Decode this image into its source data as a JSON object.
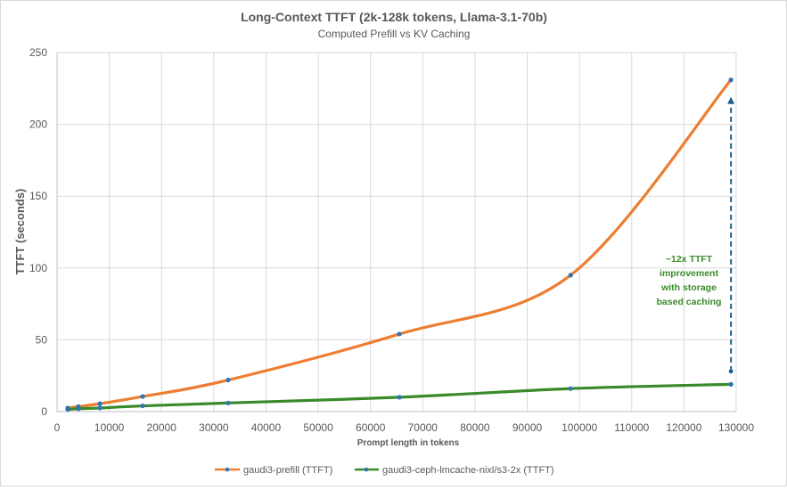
{
  "chart_data": {
    "type": "line",
    "title": "Long-Context TTFT (2k-128k tokens, Llama-3.1-70b)",
    "subtitle": "Computed Prefill vs KV Caching",
    "xlabel": "Prompt length in tokens",
    "ylabel": "TTFT (seconds)",
    "xlim": [
      0,
      130000
    ],
    "ylim": [
      0,
      250
    ],
    "x_ticks": [
      0,
      10000,
      20000,
      30000,
      40000,
      50000,
      60000,
      70000,
      80000,
      90000,
      100000,
      110000,
      120000,
      130000
    ],
    "y_ticks": [
      0,
      50,
      100,
      150,
      200,
      250
    ],
    "grid": true,
    "legend_position": "bottom",
    "series": [
      {
        "name": "gaudi3-prefill (TTFT)",
        "color": "#ed7d31",
        "marker_color": "#2e75b6",
        "x": [
          2048,
          4096,
          8192,
          16384,
          32768,
          65536,
          98304,
          129000
        ],
        "y": [
          2.5,
          3.5,
          5.5,
          10.5,
          22,
          54,
          95,
          231
        ]
      },
      {
        "name": "gaudi3-ceph-lmcache-nixl/s3-2x (TTFT)",
        "color": "#3a8a2a",
        "marker_color": "#2e75b6",
        "x": [
          2048,
          4096,
          8192,
          16384,
          32768,
          65536,
          98304,
          129000
        ],
        "y": [
          1.5,
          2,
          2.5,
          4,
          6,
          10,
          16,
          19
        ]
      }
    ],
    "annotation": {
      "lines": [
        "~12x TTFT",
        "improvement",
        "with storage",
        "based caching"
      ],
      "color": "#3a8a2a",
      "arrow_x": 129000,
      "arrow_from": 28,
      "arrow_to": 218,
      "arrow_color": "#1f5f8b"
    }
  }
}
